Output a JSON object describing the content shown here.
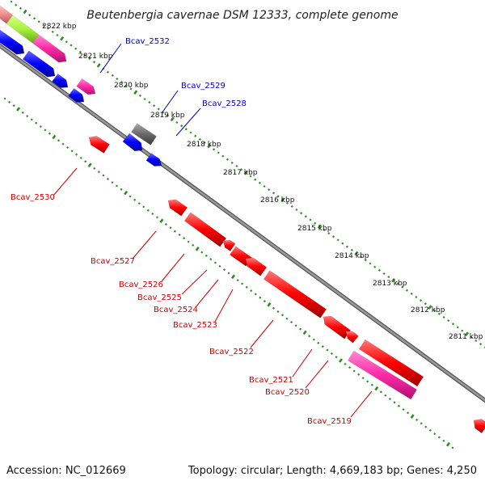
{
  "title": "Beutenbergia cavernae DSM 12333, complete genome",
  "accession": "Accession: NC_012669",
  "summary": "Topology: circular; Length: 4,669,183 bp; Genes: 4,250",
  "colors": {
    "backbone": "#808080",
    "tick": "#2e8b20",
    "red": "#ff0000",
    "blue": "#0000ff",
    "magenta": "#ff2aa8",
    "lime": "#a8f23c",
    "salmon": "#f08c8c",
    "gray": "#6a6a6a",
    "forward_label": "#0000cc",
    "reverse_label": "#cc0000"
  },
  "kbp_labels": [
    "2822 kbp",
    "2821 kbp",
    "2820 kbp",
    "2819 kbp",
    "2818 kbp",
    "2817 kbp",
    "2816 kbp",
    "2815 kbp",
    "2814 kbp",
    "2813 kbp",
    "2812 kbp",
    "2811 kbp"
  ],
  "gene_labels": {
    "forward": [
      "Bcav_2532",
      "Bcav_2529",
      "Bcav_2528"
    ],
    "reverse": [
      "Bcav_2530",
      "Bcav_2527",
      "Bcav_2526",
      "Bcav_2525",
      "Bcav_2524",
      "Bcav_2523",
      "Bcav_2522",
      "Bcav_2521",
      "Bcav_2520",
      "Bcav_2519"
    ]
  }
}
